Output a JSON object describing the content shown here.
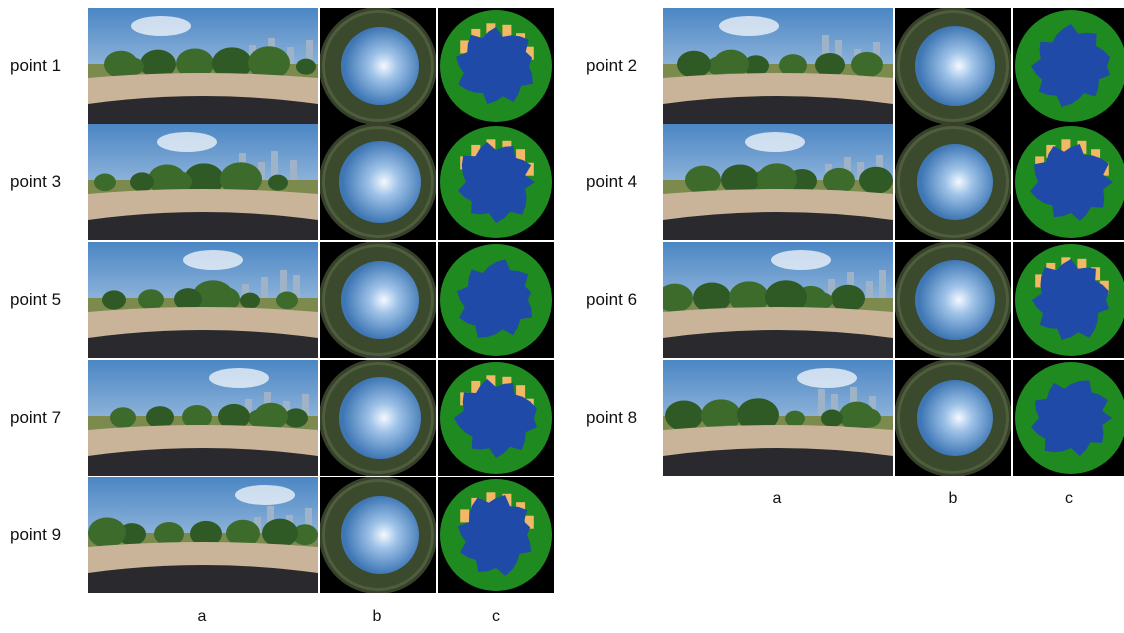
{
  "rows_left": [
    {
      "label": "point 1"
    },
    {
      "label": "point 3"
    },
    {
      "label": "point 5"
    },
    {
      "label": "point 7"
    },
    {
      "label": "point 9"
    }
  ],
  "rows_right": [
    {
      "label": "point 2"
    },
    {
      "label": "point 4"
    },
    {
      "label": "point 6"
    },
    {
      "label": "point 8"
    }
  ],
  "columns_left": {
    "a": "a",
    "b": "b",
    "c": "c"
  },
  "columns_right": {
    "a": "a",
    "b": "b",
    "c": "c"
  },
  "colors": {
    "sky": "#1f4aa8",
    "building": "#f2b866",
    "vegetation": "#1f8a1f",
    "border": "#000000"
  }
}
